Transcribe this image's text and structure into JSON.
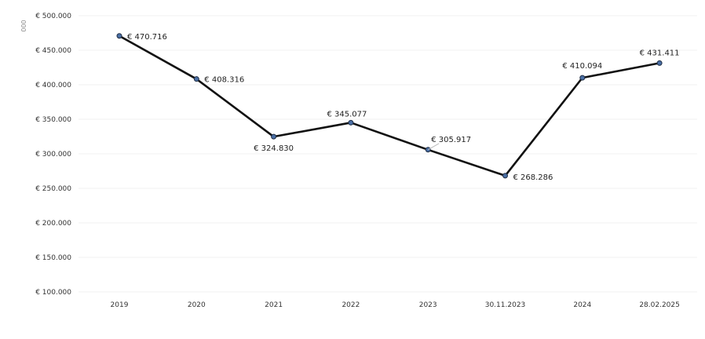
{
  "chart_data": {
    "type": "line",
    "title": "",
    "xlabel": "",
    "ylabel": "000",
    "categories": [
      "2019",
      "2020",
      "2021",
      "2022",
      "2023",
      "30.11.2023",
      "2024",
      "28.02.2025"
    ],
    "series": [
      {
        "values": [
          470716,
          408316,
          324830,
          345077,
          305917,
          268286,
          410094,
          431411
        ],
        "labels": [
          "€ 470.716",
          "€ 408.316",
          "€ 324.830",
          "€ 345.077",
          "€ 305.917",
          "€ 268.286",
          "€ 410.094",
          "€ 431.411"
        ]
      }
    ],
    "ylim": [
      100000,
      500000
    ],
    "yticks": [
      500000,
      450000,
      400000,
      350000,
      300000,
      250000,
      200000,
      150000,
      100000
    ],
    "ytick_labels": [
      "€ 500.000",
      "€ 450.000",
      "€ 400.000",
      "€ 350.000",
      "€ 300.000",
      "€ 250.000",
      "€ 200.000",
      "€ 150.000",
      "€ 100.000"
    ],
    "grid": true,
    "legend": "none",
    "line_color": "#111111",
    "marker_color": "#4a6fa5"
  }
}
